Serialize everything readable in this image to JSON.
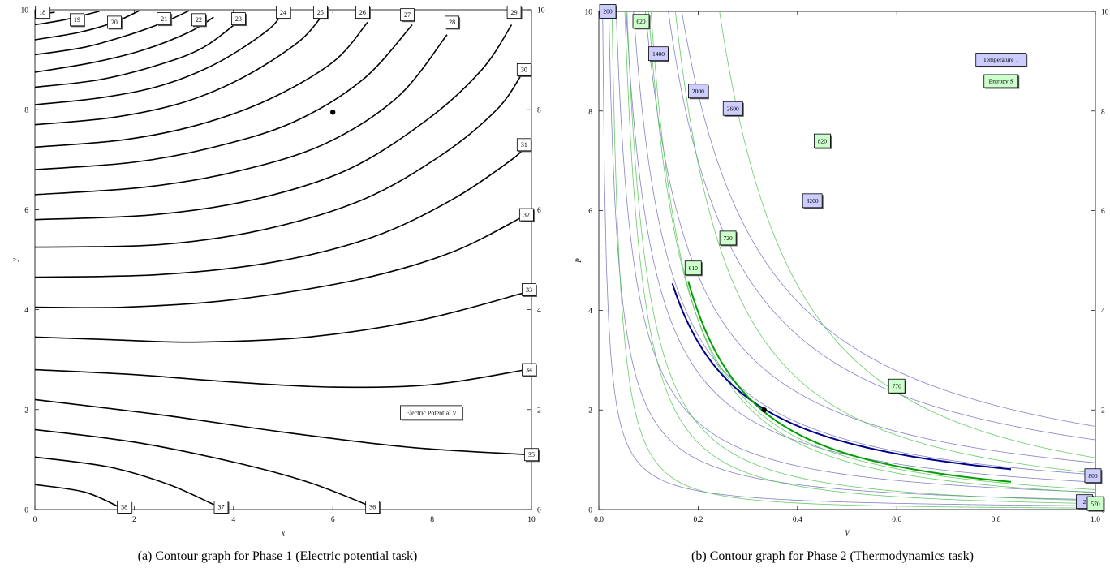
{
  "captions": {
    "a": "(a) Contour graph for Phase 1 (Electric potential task)",
    "b": "(b) Contour graph for Phase 2 (Thermodynamics task)"
  },
  "chart_data": [
    {
      "type": "contour",
      "xlabel": "x",
      "ylabel": "y",
      "xlim": [
        0,
        10
      ],
      "ylim": [
        0,
        10
      ],
      "xticks": [
        0,
        2,
        4,
        6,
        8,
        10
      ],
      "yticks": [
        0,
        2,
        4,
        6,
        8,
        10
      ],
      "legend": {
        "label": "Electric Potential V",
        "placement": "lower-right"
      },
      "series": [
        {
          "name": "Electric Potential V",
          "contour_levels": [
            18,
            19,
            20,
            21,
            22,
            23,
            24,
            25,
            26,
            27,
            28,
            29,
            30,
            31,
            32,
            33,
            34,
            35,
            36,
            37,
            38
          ]
        }
      ],
      "contours": [
        {
          "level": 18,
          "points": [
            [
              0,
              9.9
            ],
            [
              0.4,
              9.95
            ]
          ]
        },
        {
          "level": 19,
          "points": [
            [
              0,
              9.7
            ],
            [
              0.6,
              9.8
            ],
            [
              1.3,
              9.97
            ]
          ]
        },
        {
          "level": 20,
          "points": [
            [
              0,
              9.4
            ],
            [
              0.9,
              9.55
            ],
            [
              1.6,
              9.75
            ],
            [
              2.1,
              9.98
            ]
          ]
        },
        {
          "level": 21,
          "points": [
            [
              0,
              9.1
            ],
            [
              1.0,
              9.25
            ],
            [
              1.9,
              9.5
            ],
            [
              2.6,
              9.75
            ],
            [
              3.1,
              9.98
            ]
          ]
        },
        {
          "level": 22,
          "points": [
            [
              0,
              8.75
            ],
            [
              1.2,
              8.95
            ],
            [
              2.2,
              9.2
            ],
            [
              3.1,
              9.55
            ],
            [
              3.6,
              9.85
            ]
          ]
        },
        {
          "level": 23,
          "points": [
            [
              0,
              8.45
            ],
            [
              1.3,
              8.6
            ],
            [
              2.5,
              8.9
            ],
            [
              3.4,
              9.25
            ],
            [
              4.2,
              9.85
            ]
          ]
        },
        {
          "level": 24,
          "points": [
            [
              0,
              8.1
            ],
            [
              1.4,
              8.25
            ],
            [
              2.6,
              8.5
            ],
            [
              3.7,
              8.95
            ],
            [
              4.7,
              9.6
            ],
            [
              5.0,
              9.98
            ]
          ]
        },
        {
          "level": 25,
          "points": [
            [
              0,
              7.7
            ],
            [
              1.6,
              7.85
            ],
            [
              3.0,
              8.15
            ],
            [
              4.2,
              8.65
            ],
            [
              5.3,
              9.35
            ],
            [
              5.8,
              9.9
            ]
          ]
        },
        {
          "level": 26,
          "points": [
            [
              0,
              7.25
            ],
            [
              1.8,
              7.4
            ],
            [
              3.3,
              7.7
            ],
            [
              4.7,
              8.2
            ],
            [
              6.0,
              8.95
            ],
            [
              6.7,
              9.75
            ]
          ]
        },
        {
          "level": 27,
          "points": [
            [
              0,
              6.8
            ],
            [
              2.0,
              6.95
            ],
            [
              3.6,
              7.25
            ],
            [
              5.2,
              7.75
            ],
            [
              6.6,
              8.6
            ],
            [
              7.6,
              9.7
            ]
          ]
        },
        {
          "level": 28,
          "points": [
            [
              0,
              6.3
            ],
            [
              2.2,
              6.45
            ],
            [
              4.0,
              6.75
            ],
            [
              5.8,
              7.3
            ],
            [
              7.3,
              8.25
            ],
            [
              8.3,
              9.5
            ]
          ]
        },
        {
          "level": 29,
          "points": [
            [
              0,
              5.8
            ],
            [
              2.4,
              5.9
            ],
            [
              4.4,
              6.2
            ],
            [
              6.3,
              6.8
            ],
            [
              7.9,
              7.8
            ],
            [
              9.0,
              8.8
            ],
            [
              9.6,
              9.7
            ]
          ]
        },
        {
          "level": 30,
          "points": [
            [
              0,
              5.25
            ],
            [
              2.5,
              5.3
            ],
            [
              4.6,
              5.6
            ],
            [
              6.6,
              6.2
            ],
            [
              8.2,
              7.1
            ],
            [
              9.3,
              8.0
            ],
            [
              9.8,
              8.7
            ]
          ]
        },
        {
          "level": 31,
          "points": [
            [
              0,
              4.65
            ],
            [
              2.5,
              4.7
            ],
            [
              4.8,
              4.95
            ],
            [
              6.8,
              5.45
            ],
            [
              8.4,
              6.2
            ],
            [
              9.6,
              7.0
            ],
            [
              9.9,
              7.3
            ]
          ]
        },
        {
          "level": 32,
          "points": [
            [
              0,
              4.05
            ],
            [
              1.8,
              4.05
            ],
            [
              4.0,
              4.2
            ],
            [
              6.5,
              4.6
            ],
            [
              8.4,
              5.15
            ],
            [
              9.9,
              5.9
            ]
          ]
        },
        {
          "level": 33,
          "points": [
            [
              0,
              3.45
            ],
            [
              1.5,
              3.4
            ],
            [
              3.2,
              3.35
            ],
            [
              5.5,
              3.45
            ],
            [
              7.8,
              3.8
            ],
            [
              9.9,
              4.35
            ]
          ]
        },
        {
          "level": 34,
          "points": [
            [
              0,
              2.8
            ],
            [
              2.0,
              2.7
            ],
            [
              4.0,
              2.55
            ],
            [
              6.0,
              2.45
            ],
            [
              8.0,
              2.5
            ],
            [
              9.9,
              2.8
            ]
          ]
        },
        {
          "level": 35,
          "points": [
            [
              0,
              2.2
            ],
            [
              2.5,
              1.9
            ],
            [
              5.0,
              1.55
            ],
            [
              7.5,
              1.25
            ],
            [
              9.9,
              1.1
            ]
          ]
        },
        {
          "level": 36,
          "points": [
            [
              0,
              1.6
            ],
            [
              2.0,
              1.35
            ],
            [
              4.0,
              0.95
            ],
            [
              5.5,
              0.55
            ],
            [
              6.8,
              0.05
            ]
          ]
        },
        {
          "level": 37,
          "points": [
            [
              0,
              1.05
            ],
            [
              1.5,
              0.85
            ],
            [
              2.7,
              0.5
            ],
            [
              3.6,
              0.1
            ]
          ]
        },
        {
          "level": 38,
          "points": [
            [
              0,
              0.5
            ],
            [
              1.0,
              0.35
            ],
            [
              1.7,
              0.05
            ]
          ]
        }
      ],
      "labels": [
        {
          "text": "18",
          "x": 0.15,
          "y": 9.95
        },
        {
          "text": "19",
          "x": 0.85,
          "y": 9.8
        },
        {
          "text": "20",
          "x": 1.6,
          "y": 9.75
        },
        {
          "text": "21",
          "x": 2.6,
          "y": 9.82
        },
        {
          "text": "22",
          "x": 3.3,
          "y": 9.8
        },
        {
          "text": "23",
          "x": 4.1,
          "y": 9.82
        },
        {
          "text": "24",
          "x": 5.0,
          "y": 9.95
        },
        {
          "text": "25",
          "x": 5.75,
          "y": 9.95
        },
        {
          "text": "26",
          "x": 6.6,
          "y": 9.95
        },
        {
          "text": "27",
          "x": 7.5,
          "y": 9.9
        },
        {
          "text": "28",
          "x": 8.4,
          "y": 9.75
        },
        {
          "text": "29",
          "x": 9.65,
          "y": 9.95
        },
        {
          "text": "30",
          "x": 9.85,
          "y": 8.8
        },
        {
          "text": "31",
          "x": 9.85,
          "y": 7.3
        },
        {
          "text": "32",
          "x": 9.9,
          "y": 5.9
        },
        {
          "text": "33",
          "x": 9.95,
          "y": 4.4
        },
        {
          "text": "34",
          "x": 9.95,
          "y": 2.8
        },
        {
          "text": "35",
          "x": 10.0,
          "y": 1.1
        },
        {
          "text": "36",
          "x": 6.8,
          "y": 0.05
        },
        {
          "text": "37",
          "x": 3.75,
          "y": 0.05
        },
        {
          "text": "38",
          "x": 1.8,
          "y": 0.05
        }
      ],
      "point": {
        "x": 6.0,
        "y": 7.95
      }
    },
    {
      "type": "contour",
      "xlabel": "V",
      "ylabel": "P",
      "xlim": [
        0,
        1
      ],
      "ylim": [
        0,
        10
      ],
      "xticks": [
        0.0,
        0.2,
        0.4,
        0.6,
        0.8,
        1.0
      ],
      "yticks": [
        0,
        2,
        4,
        6,
        8,
        10
      ],
      "legend": [
        {
          "label": "Temperature T",
          "color": "#ccccff"
        },
        {
          "label": "Entropy S",
          "color": "#ccffcc"
        }
      ],
      "series": [
        {
          "name": "Temperature T",
          "color": "#5a5ab4",
          "highlight_color": "#00008b"
        },
        {
          "name": "Entropy S",
          "color": "#4ec24e",
          "highlight_color": "#00a000"
        }
      ],
      "temperature_constants": [
        0.075,
        0.2,
        0.35,
        0.55,
        0.7,
        0.94,
        1.4,
        1.67
      ],
      "entropy_curves": [
        {
          "k": 0.03,
          "gamma": 1.6
        },
        {
          "k": 0.12,
          "gamma": 1.5
        },
        {
          "k": 0.18,
          "gamma": 1.4
        },
        {
          "k": 0.34,
          "gamma": 1.5
        },
        {
          "k": 0.4,
          "gamma": 1.4
        },
        {
          "k": 0.73,
          "gamma": 1.4
        },
        {
          "k": 1.04,
          "gamma": 1.6
        }
      ],
      "highlight_temperature": {
        "k": 0.672,
        "v_range": [
          0.148,
          0.83
        ]
      },
      "highlight_entropy": {
        "k": 0.43,
        "gamma": 1.38,
        "v_range": [
          0.18,
          0.83
        ]
      },
      "point": {
        "x": 0.333,
        "y": 2.0
      },
      "temperature_labels": [
        {
          "text": "200",
          "x": 0.018,
          "y": 10.0
        },
        {
          "text": "1400",
          "x": 0.12,
          "y": 9.15
        },
        {
          "text": "2000",
          "x": 0.2,
          "y": 8.4
        },
        {
          "text": "2600",
          "x": 0.27,
          "y": 8.05
        },
        {
          "text": "3200",
          "x": 0.43,
          "y": 6.2
        },
        {
          "text": "800",
          "x": 0.995,
          "y": 0.68
        },
        {
          "text": "2",
          "x": 0.978,
          "y": 0.16
        }
      ],
      "entropy_labels": [
        {
          "text": "620",
          "x": 0.085,
          "y": 9.8
        },
        {
          "text": "820",
          "x": 0.45,
          "y": 7.4
        },
        {
          "text": "720",
          "x": 0.26,
          "y": 5.45
        },
        {
          "text": "610",
          "x": 0.19,
          "y": 4.85
        },
        {
          "text": "770",
          "x": 0.6,
          "y": 2.48
        },
        {
          "text": "570",
          "x": 1.0,
          "y": 0.12
        }
      ]
    }
  ]
}
